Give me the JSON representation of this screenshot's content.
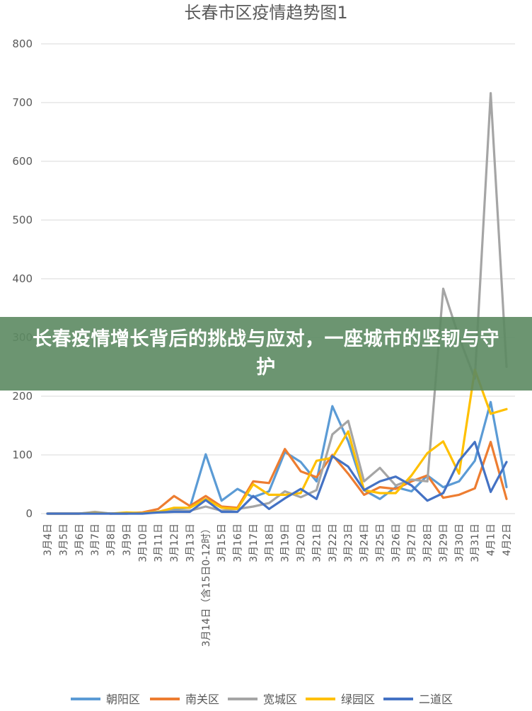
{
  "banner": {
    "text": "长春疫情增长背后的挑战与应对，一座城市的坚韧与守护"
  },
  "colors": {
    "background": "#ffffff",
    "grid": "#d9d9d9",
    "axis_text": "#595959",
    "banner": "#5c8a62"
  },
  "chart_data": {
    "type": "line",
    "title": "长春市区疫情趋势图1",
    "xlabel": "",
    "ylabel": "",
    "ylim": [
      0,
      800
    ],
    "yticks": [
      0,
      100,
      200,
      300,
      400,
      500,
      600,
      700,
      800
    ],
    "grid": true,
    "legend_position": "bottom",
    "categories": [
      "3月4日",
      "3月5日",
      "3月6日",
      "3月7日",
      "3月8日",
      "3月9日",
      "3月10日",
      "3月11日",
      "3月12日",
      "3月13日",
      "3月14日（含15日0-12时）",
      "3月15日",
      "3月16日",
      "3月17日",
      "3月18日",
      "3月19日",
      "3月20日",
      "3月21日",
      "3月22日",
      "3月23日",
      "3月24日",
      "3月25日",
      "3月26日",
      "3月27日",
      "3月28日",
      "3月29日",
      "3月30日",
      "3月31日",
      "4月1日",
      "4月2日"
    ],
    "series": [
      {
        "name": "朝阳区",
        "color": "#5b9bd5",
        "values": [
          0,
          0,
          0,
          2,
          0,
          0,
          1,
          3,
          8,
          10,
          101,
          22,
          42,
          28,
          38,
          105,
          88,
          55,
          183,
          123,
          40,
          25,
          45,
          38,
          65,
          45,
          55,
          90,
          190,
          45
        ]
      },
      {
        "name": "南关区",
        "color": "#ed7d31",
        "values": [
          0,
          0,
          0,
          1,
          0,
          1,
          2,
          8,
          30,
          13,
          30,
          12,
          10,
          55,
          52,
          110,
          72,
          62,
          100,
          68,
          32,
          45,
          42,
          55,
          65,
          27,
          32,
          43,
          122,
          25
        ]
      },
      {
        "name": "宽城区",
        "color": "#a5a5a5",
        "values": [
          0,
          0,
          0,
          3,
          0,
          0,
          1,
          2,
          5,
          5,
          12,
          5,
          8,
          12,
          18,
          38,
          28,
          40,
          135,
          158,
          55,
          78,
          48,
          58,
          55,
          383,
          300,
          230,
          716,
          250
        ]
      },
      {
        "name": "绿园区",
        "color": "#ffc000",
        "values": [
          0,
          0,
          0,
          1,
          0,
          2,
          1,
          3,
          10,
          10,
          25,
          10,
          8,
          50,
          32,
          32,
          35,
          90,
          95,
          140,
          40,
          35,
          35,
          65,
          103,
          123,
          68,
          245,
          170,
          178
        ]
      },
      {
        "name": "二道区",
        "color": "#4472c4",
        "values": [
          0,
          0,
          0,
          0,
          0,
          0,
          0,
          2,
          3,
          3,
          23,
          3,
          3,
          30,
          8,
          26,
          42,
          25,
          98,
          80,
          40,
          55,
          63,
          48,
          22,
          35,
          90,
          122,
          37,
          88
        ]
      }
    ]
  }
}
